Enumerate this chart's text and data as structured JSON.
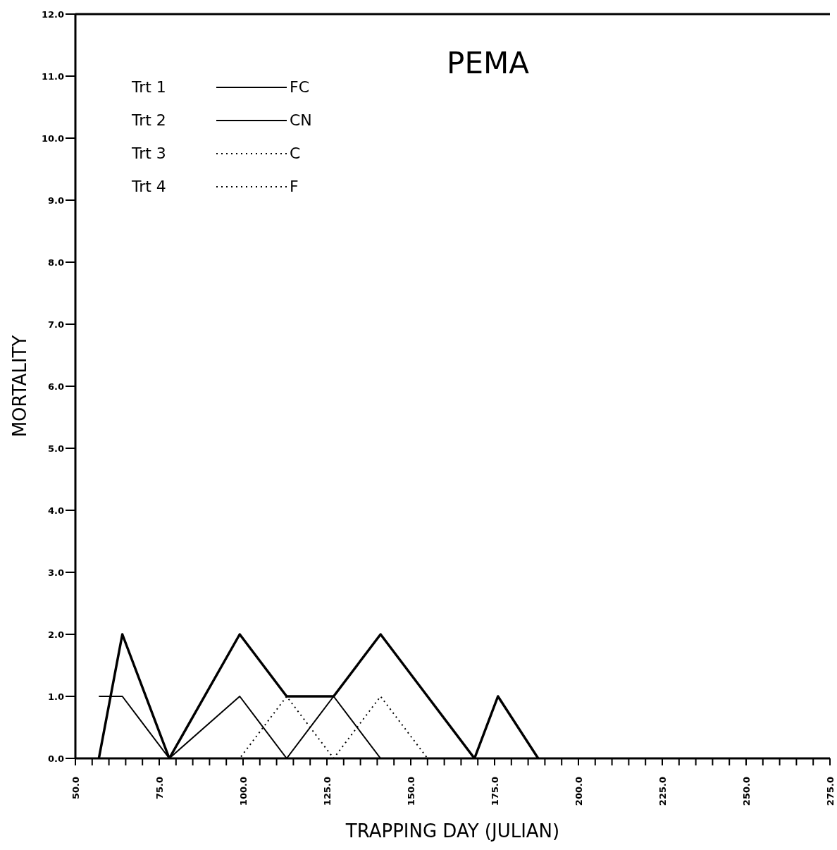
{
  "chart_data": {
    "type": "line",
    "title": "PEMA",
    "xlabel": "TRAPPING DAY (JULIAN)",
    "ylabel": "MORTALITY",
    "annotations": [
      "Trt 1",
      "Trt 2",
      "Trt 3",
      "Trt 4"
    ],
    "x": [
      57,
      64,
      78,
      99,
      113,
      127,
      141,
      155,
      169,
      176,
      188
    ],
    "series": [
      {
        "name": "FC",
        "color": "#000000",
        "line_style": "solid",
        "values": [
          0,
          2,
          0,
          2,
          1,
          1,
          2,
          1,
          0,
          1,
          0
        ]
      },
      {
        "name": "CN",
        "color": "#000000",
        "line_style": "solid",
        "values": [
          1,
          1,
          0,
          1,
          0,
          1,
          0,
          0,
          0,
          0,
          0
        ]
      },
      {
        "name": "C",
        "color": "#000000",
        "line_style": "dotted",
        "values": [
          0,
          0,
          0,
          0,
          1,
          0,
          1,
          0,
          0,
          0,
          0
        ]
      },
      {
        "name": "F",
        "color": "#000000",
        "line_style": "dotted",
        "values": [
          null,
          null,
          null,
          null,
          null,
          null,
          null,
          null,
          null,
          null,
          null
        ]
      }
    ],
    "xlim": [
      50,
      275
    ],
    "xticks": [
      {
        "value": 50,
        "label": "50.0"
      },
      {
        "value": 55,
        "label": null
      },
      {
        "value": 60,
        "label": null
      },
      {
        "value": 65,
        "label": null
      },
      {
        "value": 70,
        "label": null
      },
      {
        "value": 75,
        "label": "75.0"
      },
      {
        "value": 80,
        "label": null
      },
      {
        "value": 85,
        "label": null
      },
      {
        "value": 90,
        "label": null
      },
      {
        "value": 95,
        "label": null
      },
      {
        "value": 100,
        "label": "100.0"
      },
      {
        "value": 105,
        "label": null
      },
      {
        "value": 110,
        "label": null
      },
      {
        "value": 115,
        "label": null
      },
      {
        "value": 120,
        "label": null
      },
      {
        "value": 125,
        "label": "125.0"
      },
      {
        "value": 130,
        "label": null
      },
      {
        "value": 135,
        "label": null
      },
      {
        "value": 140,
        "label": null
      },
      {
        "value": 145,
        "label": null
      },
      {
        "value": 150,
        "label": "150.0"
      },
      {
        "value": 155,
        "label": null
      },
      {
        "value": 160,
        "label": null
      },
      {
        "value": 165,
        "label": null
      },
      {
        "value": 170,
        "label": null
      },
      {
        "value": 175,
        "label": "175.0"
      },
      {
        "value": 180,
        "label": null
      },
      {
        "value": 185,
        "label": null
      },
      {
        "value": 190,
        "label": null
      },
      {
        "value": 195,
        "label": null
      },
      {
        "value": 200,
        "label": "200.0"
      },
      {
        "value": 205,
        "label": null
      },
      {
        "value": 210,
        "label": null
      },
      {
        "value": 215,
        "label": null
      },
      {
        "value": 220,
        "label": null
      },
      {
        "value": 225,
        "label": "225.0"
      },
      {
        "value": 230,
        "label": null
      },
      {
        "value": 235,
        "label": null
      },
      {
        "value": 240,
        "label": null
      },
      {
        "value": 245,
        "label": null
      },
      {
        "value": 250,
        "label": "250.0"
      },
      {
        "value": 255,
        "label": null
      },
      {
        "value": 260,
        "label": null
      },
      {
        "value": 265,
        "label": null
      },
      {
        "value": 270,
        "label": null
      },
      {
        "value": 275,
        "label": "275.0"
      }
    ],
    "ylim": [
      0,
      12
    ],
    "yticks": [
      {
        "value": 0,
        "label": "0.0"
      },
      {
        "value": 1,
        "label": "1.0"
      },
      {
        "value": 2,
        "label": "2.0"
      },
      {
        "value": 3,
        "label": "3.0"
      },
      {
        "value": 4,
        "label": "4.0"
      },
      {
        "value": 5,
        "label": "5.0"
      },
      {
        "value": 6,
        "label": "6.0"
      },
      {
        "value": 7,
        "label": "7.0"
      },
      {
        "value": 8,
        "label": "8.0"
      },
      {
        "value": 9,
        "label": "9.0"
      },
      {
        "value": 10,
        "label": "10.0"
      },
      {
        "value": 11,
        "label": "11.0"
      },
      {
        "value": 12,
        "label": "12.0"
      }
    ],
    "grid": false,
    "legend": "top left",
    "marker": "none"
  }
}
